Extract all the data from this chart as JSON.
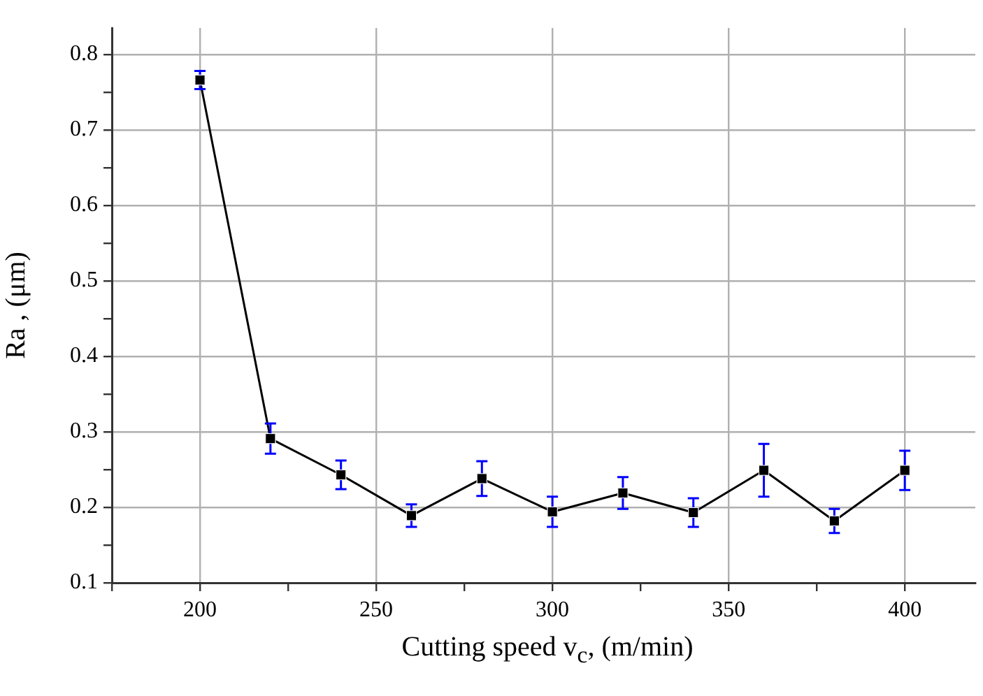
{
  "chart_data": {
    "type": "line",
    "xlabel": "Cutting speed v$_{c}$, (m/min)",
    "ylabel": "Ra , (μm)",
    "x": [
      200,
      220,
      240,
      260,
      280,
      300,
      320,
      340,
      360,
      380,
      400
    ],
    "series": [
      {
        "color": "#000000",
        "values": [
          0.766,
          0.291,
          0.243,
          0.189,
          0.238,
          0.194,
          0.219,
          0.193,
          0.249,
          0.182,
          0.249
        ],
        "errors": [
          0.012,
          0.02,
          0.019,
          0.015,
          0.023,
          0.02,
          0.021,
          0.019,
          0.035,
          0.016,
          0.026
        ]
      }
    ],
    "xlim": [
      175,
      420
    ],
    "xticks": [
      {
        "value": 175,
        "label": null
      },
      200,
      {
        "value": 225,
        "label": null
      },
      250,
      {
        "value": 275,
        "label": null
      },
      300,
      {
        "value": 325,
        "label": null
      },
      350,
      {
        "value": 375,
        "label": null
      },
      400
    ],
    "ylim": [
      0.1,
      0.835
    ],
    "yticks": [
      0.1,
      {
        "value": 0.15,
        "label": null
      },
      0.2,
      {
        "value": 0.25,
        "label": null
      },
      0.3,
      {
        "value": 0.35,
        "label": null
      },
      0.4,
      {
        "value": 0.45,
        "label": null
      },
      0.5,
      {
        "value": 0.55,
        "label": null
      },
      0.6,
      {
        "value": 0.65,
        "label": null
      },
      0.7,
      {
        "value": 0.75,
        "label": null
      },
      0.8
    ],
    "grid": true,
    "legend": false,
    "marker": "square",
    "line_style": "solid"
  }
}
